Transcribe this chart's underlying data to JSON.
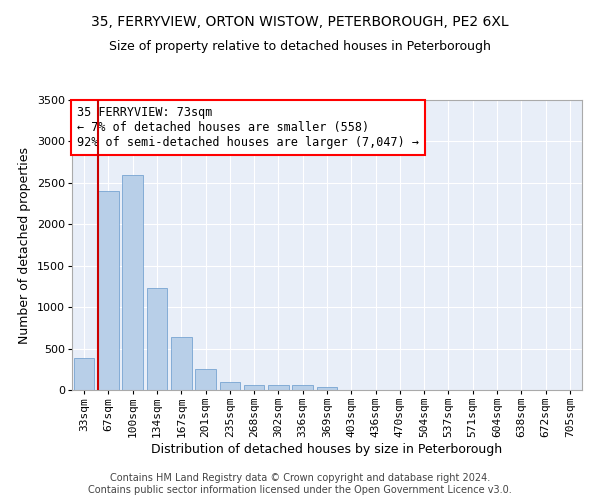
{
  "title_line1": "35, FERRYVIEW, ORTON WISTOW, PETERBOROUGH, PE2 6XL",
  "title_line2": "Size of property relative to detached houses in Peterborough",
  "xlabel": "Distribution of detached houses by size in Peterborough",
  "ylabel": "Number of detached properties",
  "footer_line1": "Contains HM Land Registry data © Crown copyright and database right 2024.",
  "footer_line2": "Contains public sector information licensed under the Open Government Licence v3.0.",
  "categories": [
    "33sqm",
    "67sqm",
    "100sqm",
    "134sqm",
    "167sqm",
    "201sqm",
    "235sqm",
    "268sqm",
    "302sqm",
    "336sqm",
    "369sqm",
    "403sqm",
    "436sqm",
    "470sqm",
    "504sqm",
    "537sqm",
    "571sqm",
    "604sqm",
    "638sqm",
    "672sqm",
    "705sqm"
  ],
  "bar_values": [
    390,
    2400,
    2600,
    1230,
    640,
    255,
    100,
    65,
    60,
    55,
    40,
    0,
    0,
    0,
    0,
    0,
    0,
    0,
    0,
    0,
    0
  ],
  "bar_color": "#b8cfe8",
  "bar_edge_color": "#6699cc",
  "annotation_box_text": "35 FERRYVIEW: 73sqm\n← 7% of detached houses are smaller (558)\n92% of semi-detached houses are larger (7,047) →",
  "vline_color": "#cc0000",
  "vline_x": 0.57,
  "ylim": [
    0,
    3500
  ],
  "yticks": [
    0,
    500,
    1000,
    1500,
    2000,
    2500,
    3000,
    3500
  ],
  "background_color": "#e8eef8",
  "grid_color": "#ffffff",
  "title_fontsize": 10,
  "subtitle_fontsize": 9,
  "axis_label_fontsize": 9,
  "tick_fontsize": 8,
  "annotation_fontsize": 8.5,
  "footer_fontsize": 7
}
